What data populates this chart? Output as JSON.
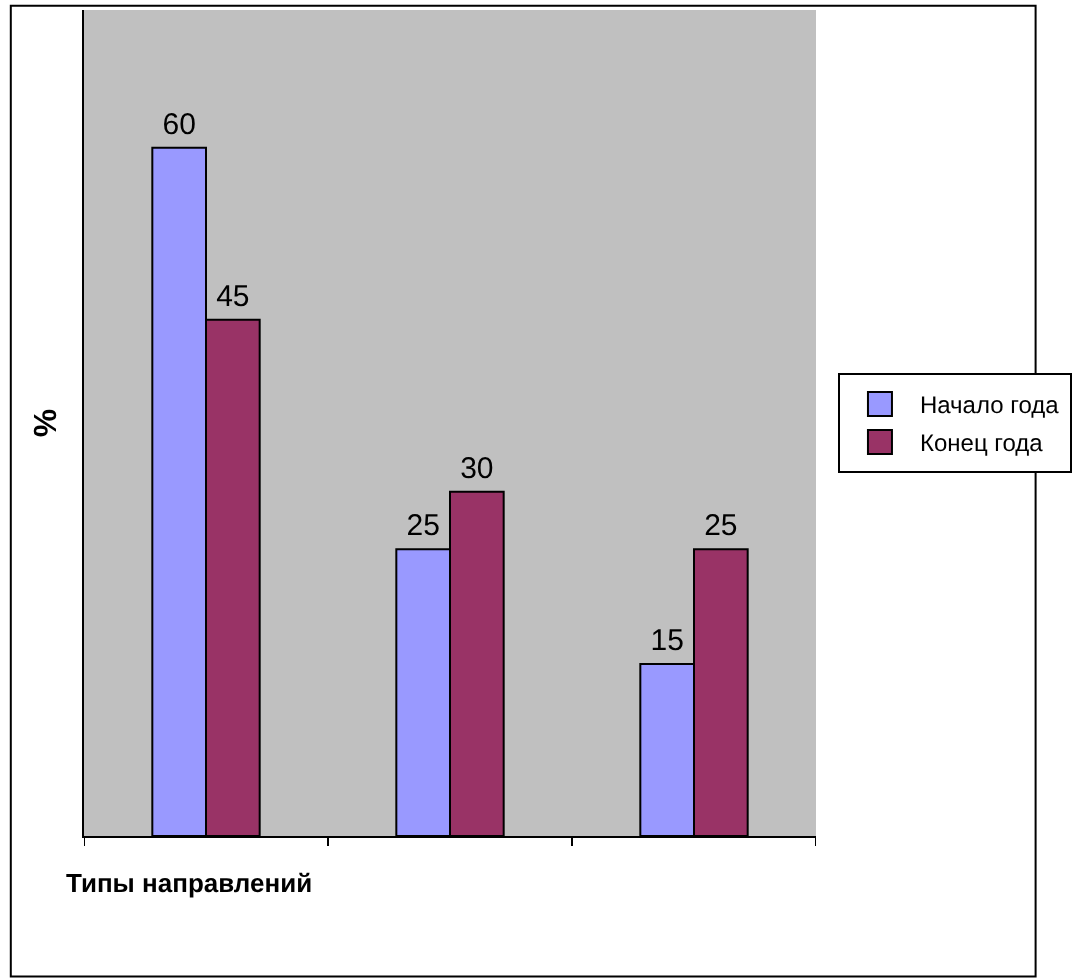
{
  "chart_data": {
    "type": "bar",
    "xlabel": "Типы направлений",
    "ylabel": "%",
    "categories": [
      null,
      null,
      null
    ],
    "series": [
      {
        "name": "Начало года",
        "color": "#9999ff",
        "values": [
          60,
          25,
          15
        ]
      },
      {
        "name": "Конец года",
        "color": "#993366",
        "values": [
          45,
          30,
          25
        ]
      }
    ],
    "data_labels": true,
    "legend": "right",
    "grid": false
  }
}
